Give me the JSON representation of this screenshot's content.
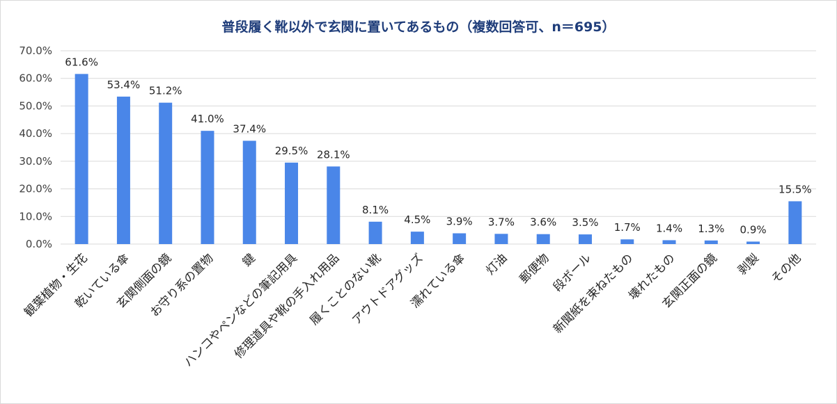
{
  "chart_data": {
    "type": "bar",
    "title": "普段履く靴以外で玄関に置いてあるもの（複数回答可、n＝695）",
    "xlabel": "",
    "ylabel": "",
    "ylim": [
      0,
      70
    ],
    "ytick_step": 10,
    "ytick_labels": [
      "0.0%",
      "10.0%",
      "20.0%",
      "30.0%",
      "40.0%",
      "50.0%",
      "60.0%",
      "70.0%"
    ],
    "grid": true,
    "legend": "none",
    "bar_color": "#4a86e8",
    "categories": [
      "観葉植物・生花",
      "乾いている傘",
      "玄関側面の鏡",
      "お守り系の置物",
      "鍵",
      "ハンコやペンなどの筆記用具",
      "修理道具や靴の手入れ用品",
      "履くことのない靴",
      "アウトドアグッズ",
      "濡れている傘",
      "灯油",
      "郵便物",
      "段ボール",
      "新聞紙を束ねたもの",
      "壊れたもの",
      "玄関正面の鏡",
      "剥製",
      "その他"
    ],
    "values": [
      61.6,
      53.4,
      51.2,
      41.0,
      37.4,
      29.5,
      28.1,
      8.1,
      4.5,
      3.9,
      3.7,
      3.6,
      3.5,
      1.7,
      1.4,
      1.3,
      0.9,
      15.5
    ],
    "value_labels": [
      "61.6%",
      "53.4%",
      "51.2%",
      "41.0%",
      "37.4%",
      "29.5%",
      "28.1%",
      "8.1%",
      "4.5%",
      "3.9%",
      "3.7%",
      "3.6%",
      "3.5%",
      "1.7%",
      "1.4%",
      "1.3%",
      "0.9%",
      "15.5%"
    ]
  }
}
